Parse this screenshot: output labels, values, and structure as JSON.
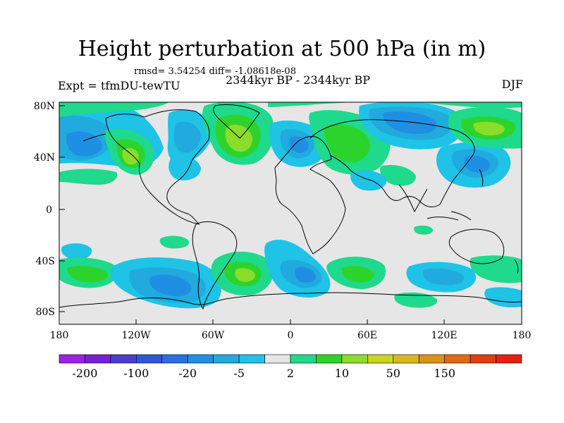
{
  "figure": {
    "title": "Height perturbation at 500 hPa (in m)",
    "stats_line": "rmsd= 3.54254 diff= -1.08618e-08",
    "period": "2344kyr BP - 2344kyr BP",
    "experiment": "Expt = tfmDU-tewTU",
    "season": "DJF"
  },
  "axes": {
    "x_ticks": [
      "180",
      "120W",
      "60W",
      "0",
      "60E",
      "120E",
      "180"
    ],
    "y_ticks": [
      "80N",
      "40N",
      "0",
      "40S",
      "80S"
    ]
  },
  "colorbar": {
    "labels": [
      "-200",
      "-100",
      "-20",
      "-5",
      "2",
      "10",
      "50",
      "150"
    ],
    "colors": [
      "#9a22e6",
      "#7a1fd8",
      "#4b3cd2",
      "#2f55d8",
      "#2a6fe0",
      "#1f8fe4",
      "#21aadd",
      "#1ec3e6",
      "#e6e6e6",
      "#1fd98c",
      "#2dd32d",
      "#8cdc2a",
      "#c8d61e",
      "#d9b81c",
      "#d9921a",
      "#e06a14",
      "#e23c12",
      "#e8200f"
    ]
  },
  "chart_data": {
    "type": "contour-map",
    "title": "Height perturbation at 500 hPa (in m)",
    "variable": "500 hPa geopotential height perturbation",
    "units": "m",
    "projection": "cylindrical equidistant",
    "lon_range": [
      -180,
      180
    ],
    "lat_range": [
      -90,
      90
    ],
    "contour_levels": [
      -200,
      -150,
      -100,
      -50,
      -20,
      -10,
      -5,
      -2,
      2,
      5,
      10,
      20,
      50,
      100,
      150,
      200
    ],
    "features": [
      {
        "region": "North Pacific / Aleutians",
        "sign": "negative",
        "approx_value": -10
      },
      {
        "region": "Alaska / western Canada",
        "sign": "positive",
        "approx_value": 20
      },
      {
        "region": "Greenland",
        "sign": "positive",
        "approx_value": 20
      },
      {
        "region": "Scandinavia / Northern Europe",
        "sign": "negative",
        "approx_value": -5
      },
      {
        "region": "Western Siberia",
        "sign": "positive",
        "approx_value": 10
      },
      {
        "region": "Central / East Siberia",
        "sign": "negative",
        "approx_value": -10
      },
      {
        "region": "North-East Pacific / Kamchatka",
        "sign": "positive",
        "approx_value": 20
      },
      {
        "region": "Southern South America / Drake Passage",
        "sign": "negative",
        "approx_value": -10
      },
      {
        "region": "South Atlantic",
        "sign": "positive",
        "approx_value": 20
      },
      {
        "region": "South-East Atlantic",
        "sign": "negative",
        "approx_value": -10
      },
      {
        "region": "Southern Indian Ocean",
        "sign": "positive",
        "approx_value": 5
      },
      {
        "region": "South of Australia",
        "sign": "negative",
        "approx_value": -5
      }
    ]
  }
}
